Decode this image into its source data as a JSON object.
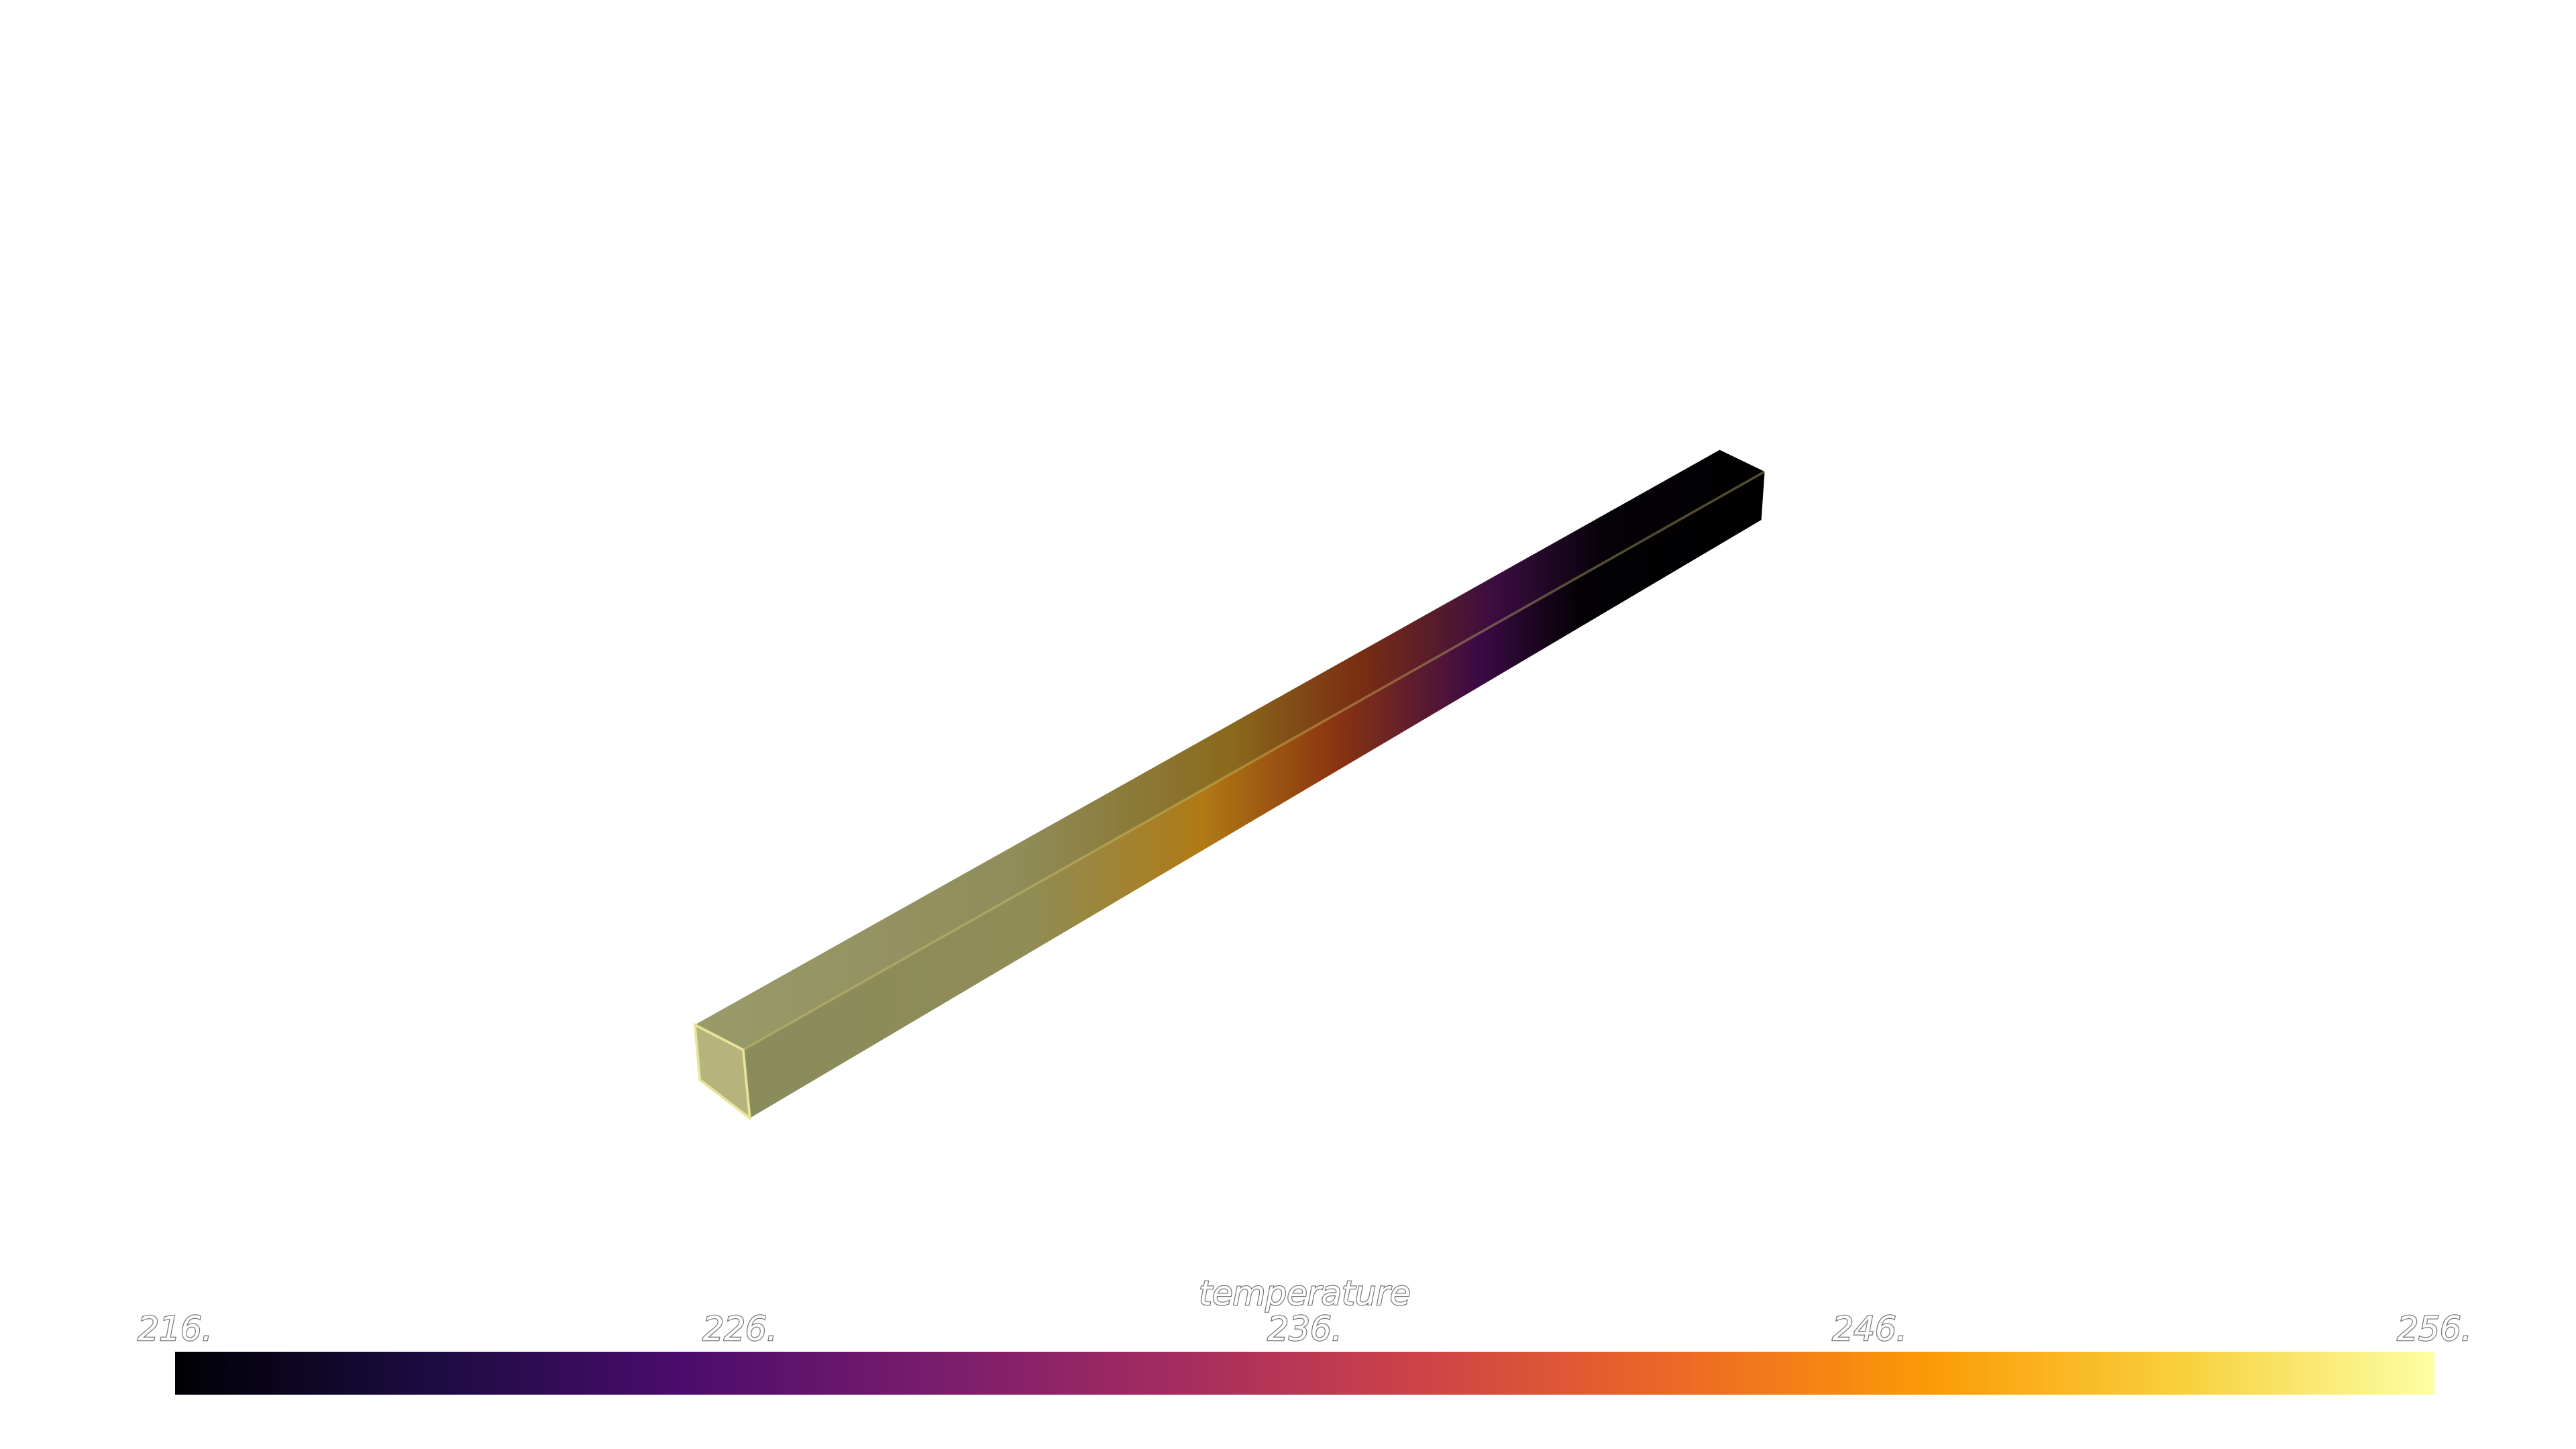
{
  "scalar_bar": {
    "title": "temperature",
    "range": [
      216,
      256
    ],
    "ticks": [
      {
        "value": 216,
        "label": "216."
      },
      {
        "value": 226,
        "label": "226."
      },
      {
        "value": 236,
        "label": "236."
      },
      {
        "value": 246,
        "label": "246."
      },
      {
        "value": 256,
        "label": "256."
      }
    ],
    "colormap": [
      "#000004",
      "#1b0c41",
      "#4a0c6b",
      "#781c6d",
      "#a52c60",
      "#cf4446",
      "#ed6925",
      "#fb9b06",
      "#f7d13d",
      "#fcffa4"
    ]
  }
}
